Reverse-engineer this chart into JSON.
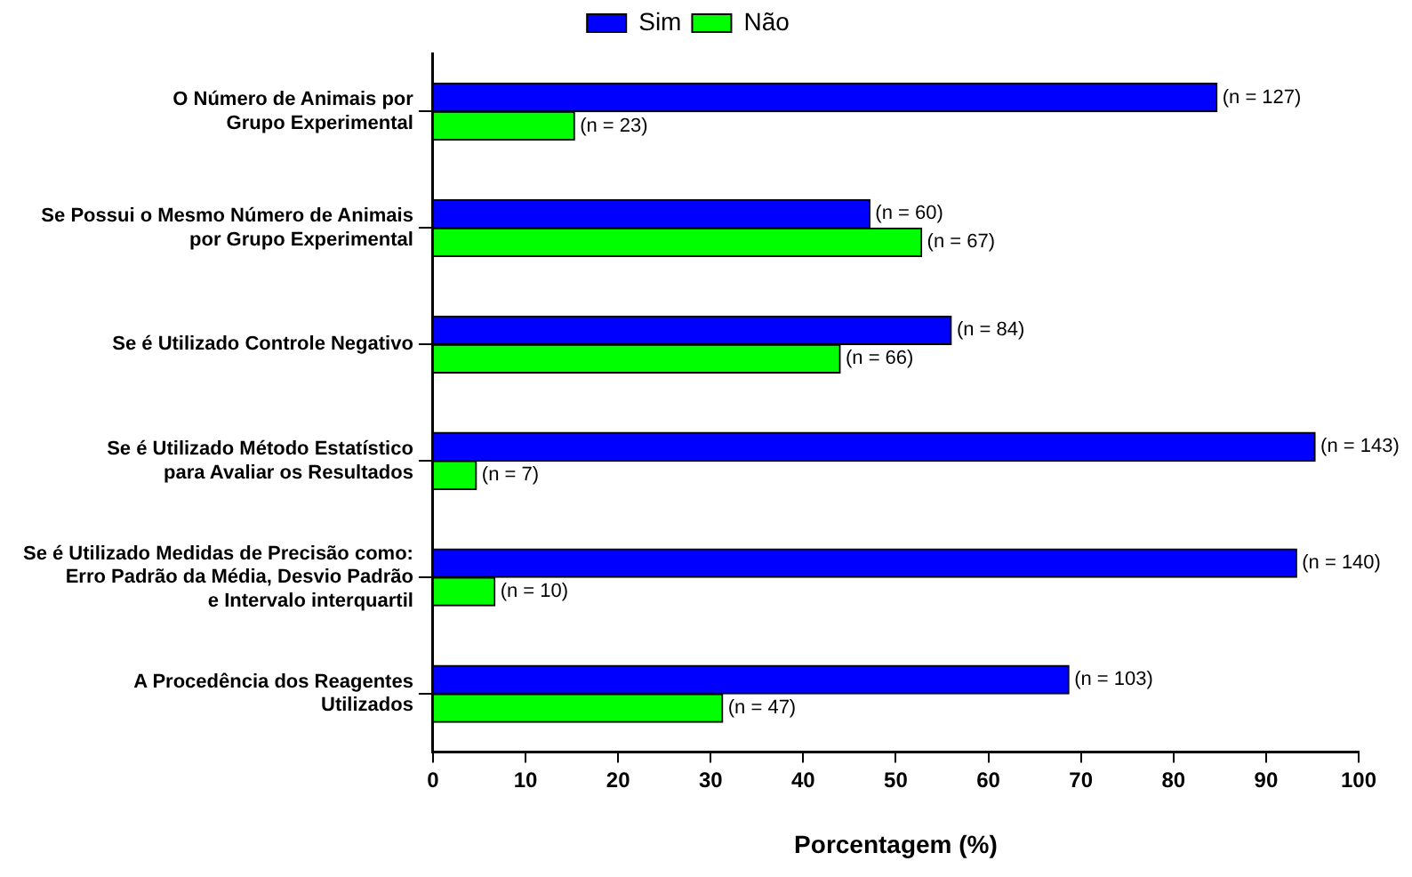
{
  "chart_data": {
    "type": "bar",
    "orientation": "horizontal",
    "xlabel": "Porcentagem (%)",
    "categories": [
      "O Número de Animais por\nGrupo Experimental",
      "Se Possui o Mesmo Número de Animais\npor Grupo Experimental",
      "Se é Utilizado Controle Negativo",
      "Se é Utilizado Método Estatístico\npara Avaliar os Resultados",
      "Se é Utilizado Medidas de Precisão como:\nErro Padrão da Média, Desvio Padrão\ne Intervalo interquartil",
      "A Procedência dos Reagentes\nUtilizados"
    ],
    "series": [
      {
        "name": "Sim",
        "color": "#0000ff",
        "values": [
          84.7,
          47.2,
          56,
          95.3,
          93.3,
          68.7
        ]
      },
      {
        "name": "Não",
        "color": "#00ff00",
        "values": [
          15.3,
          52.8,
          44,
          4.7,
          6.7,
          31.3
        ]
      }
    ],
    "annotations": [
      {
        "text": "(n = 127)",
        "x": 84.7,
        "y": "O Número de Animais por\nGrupo Experimental"
      },
      {
        "text": "(n = 23)",
        "x": 15.3,
        "y": "O Número de Animais por\nGrupo Experimental"
      },
      {
        "text": "(n = 60)",
        "x": 47.2,
        "y": "Se Possui o Mesmo Número de Animais\npor Grupo Experimental"
      },
      {
        "text": "(n = 67)",
        "x": 52.8,
        "y": "Se Possui o Mesmo Número de Animais\npor Grupo Experimental"
      },
      {
        "text": "(n = 84)",
        "x": 56,
        "y": "Se é Utilizado Controle Negativo"
      },
      {
        "text": "(n = 66)",
        "x": 44,
        "y": "Se é Utilizado Controle Negativo"
      },
      {
        "text": "(n = 143)",
        "x": 95.3,
        "y": "Se é Utilizado Método Estatístico\npara Avaliar os Resultados"
      },
      {
        "text": "(n = 7)",
        "x": 4.7,
        "y": "Se é Utilizado Método Estatístico\npara Avaliar os Resultados"
      },
      {
        "text": "(n = 140)",
        "x": 93.3,
        "y": "Se é Utilizado Medidas de Precisão como:\nErro Padrão da Média, Desvio Padrão\ne Intervalo interquartil"
      },
      {
        "text": "(n = 10)",
        "x": 6.7,
        "y": "Se é Utilizado Medidas de Precisão como:\nErro Padrão da Média, Desvio Padrão\ne Intervalo interquartil"
      },
      {
        "text": "(n = 103)",
        "x": 68.7,
        "y": "A Procedência dos Reagentes\nUtilizados"
      },
      {
        "text": "(n = 47)",
        "x": 31.3,
        "y": "A Procedência dos Reagentes\nUtilizados"
      }
    ],
    "xlim": [
      0,
      100
    ],
    "xticks": [
      0,
      10,
      20,
      30,
      40,
      50,
      60,
      70,
      80,
      90,
      100
    ],
    "grid": false,
    "legend": "top"
  }
}
